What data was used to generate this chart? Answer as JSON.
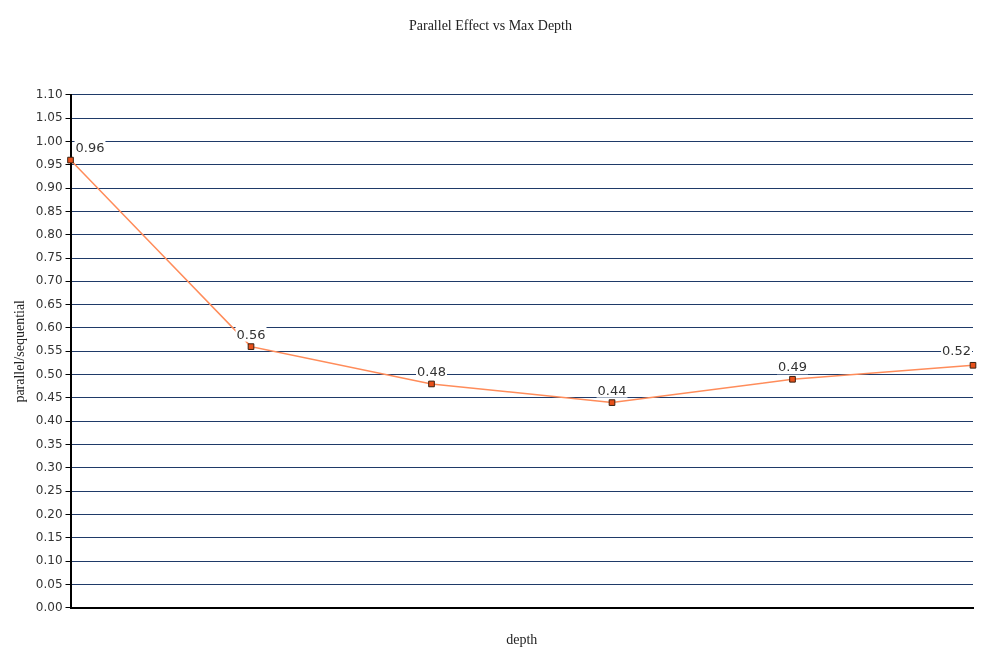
{
  "chart_data": {
    "type": "line",
    "title": "Parallel Effect vs Max Depth",
    "xlabel": "depth",
    "ylabel": "parallel/sequential",
    "categories": [
      null,
      null,
      null,
      null,
      null,
      null
    ],
    "series": [
      {
        "color": "#ff8c5a",
        "values": [
          0.96,
          0.56,
          0.48,
          0.44,
          0.49,
          0.52
        ]
      }
    ],
    "ylim": [
      0,
      1.1
    ],
    "yticks": [
      {
        "value": 0,
        "label": "0.00"
      },
      {
        "value": 0.05,
        "label": "0.05"
      },
      {
        "value": 0.1,
        "label": "0.10"
      },
      {
        "value": 0.15,
        "label": "0.15"
      },
      {
        "value": 0.2,
        "label": "0.20"
      },
      {
        "value": 0.25,
        "label": "0.25"
      },
      {
        "value": 0.3,
        "label": "0.30"
      },
      {
        "value": 0.35,
        "label": "0.35"
      },
      {
        "value": 0.4,
        "label": "0.40"
      },
      {
        "value": 0.45,
        "label": "0.45"
      },
      {
        "value": 0.5,
        "label": "0.50"
      },
      {
        "value": 0.55,
        "label": "0.55"
      },
      {
        "value": 0.6,
        "label": "0.60"
      },
      {
        "value": 0.65,
        "label": "0.65"
      },
      {
        "value": 0.7,
        "label": "0.70"
      },
      {
        "value": 0.75,
        "label": "0.75"
      },
      {
        "value": 0.8,
        "label": "0.80"
      },
      {
        "value": 0.85,
        "label": "0.85"
      },
      {
        "value": 0.9,
        "label": "0.90"
      },
      {
        "value": 0.95,
        "label": "0.95"
      },
      {
        "value": 1.0,
        "label": "1.00"
      },
      {
        "value": 1.05,
        "label": "1.05"
      },
      {
        "value": 1.1,
        "label": "1.10"
      }
    ],
    "grid": "y",
    "marker": "square",
    "line_style": "solid",
    "data_labels": true,
    "legend": false
  }
}
